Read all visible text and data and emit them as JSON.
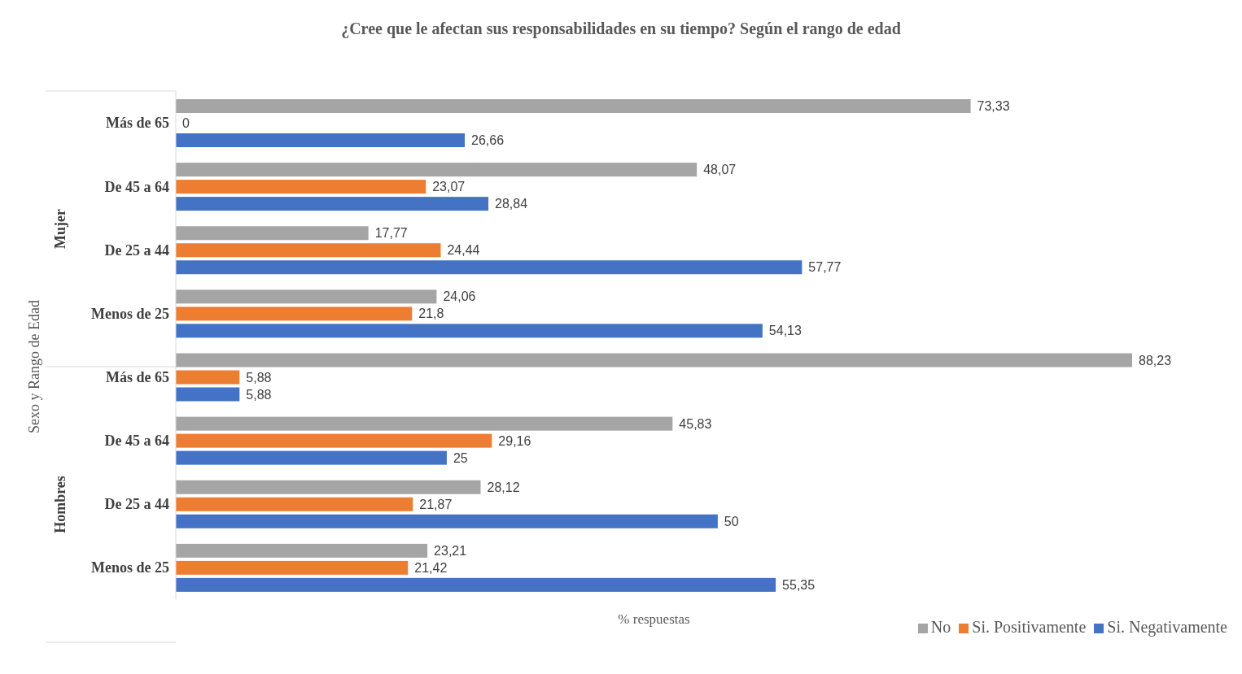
{
  "chart_data": {
    "type": "bar",
    "orientation": "horizontal",
    "title": "¿Cree que le afectan sus responsabilidades  en su tiempo? Según el rango de edad",
    "xlabel": "% respuestas",
    "ylabel": "Sexo y Rango de Edad",
    "categories": [
      "Más de 65",
      "De 45 a 64",
      "De 25 a 44",
      "Menos de 25",
      "Más de 65",
      "De 45 a 64",
      "De 25 a 44",
      "Menos de 25"
    ],
    "annotations": [
      "Mujer",
      "Hombres"
    ],
    "series": [
      {
        "name": "No",
        "color": "#a5a5a5",
        "values": [
          73.33,
          48.07,
          17.77,
          24.06,
          88.23,
          45.83,
          28.12,
          23.21
        ],
        "value_labels": [
          "73,33",
          "48,07",
          "17,77",
          "24,06",
          "88,23",
          "45,83",
          "28,12",
          "23,21"
        ]
      },
      {
        "name": "Si. Positivamente",
        "color": "#ed7d31",
        "values": [
          0,
          23.07,
          24.44,
          21.8,
          5.88,
          29.16,
          21.87,
          21.42
        ],
        "value_labels": [
          "0",
          "23,07",
          "24,44",
          "21,8",
          "5,88",
          "29,16",
          "21,87",
          "21,42"
        ]
      },
      {
        "name": "Si. Negativamente",
        "color": "#4472c4",
        "values": [
          26.66,
          28.84,
          57.77,
          54.13,
          5.88,
          25,
          50,
          55.35
        ],
        "value_labels": [
          "26,66",
          "28,84",
          "57,77",
          "54,13",
          "5,88",
          "25",
          "50",
          "55,35"
        ]
      }
    ],
    "legend": "bottom right",
    "tick_labels": "y",
    "grid": false
  }
}
